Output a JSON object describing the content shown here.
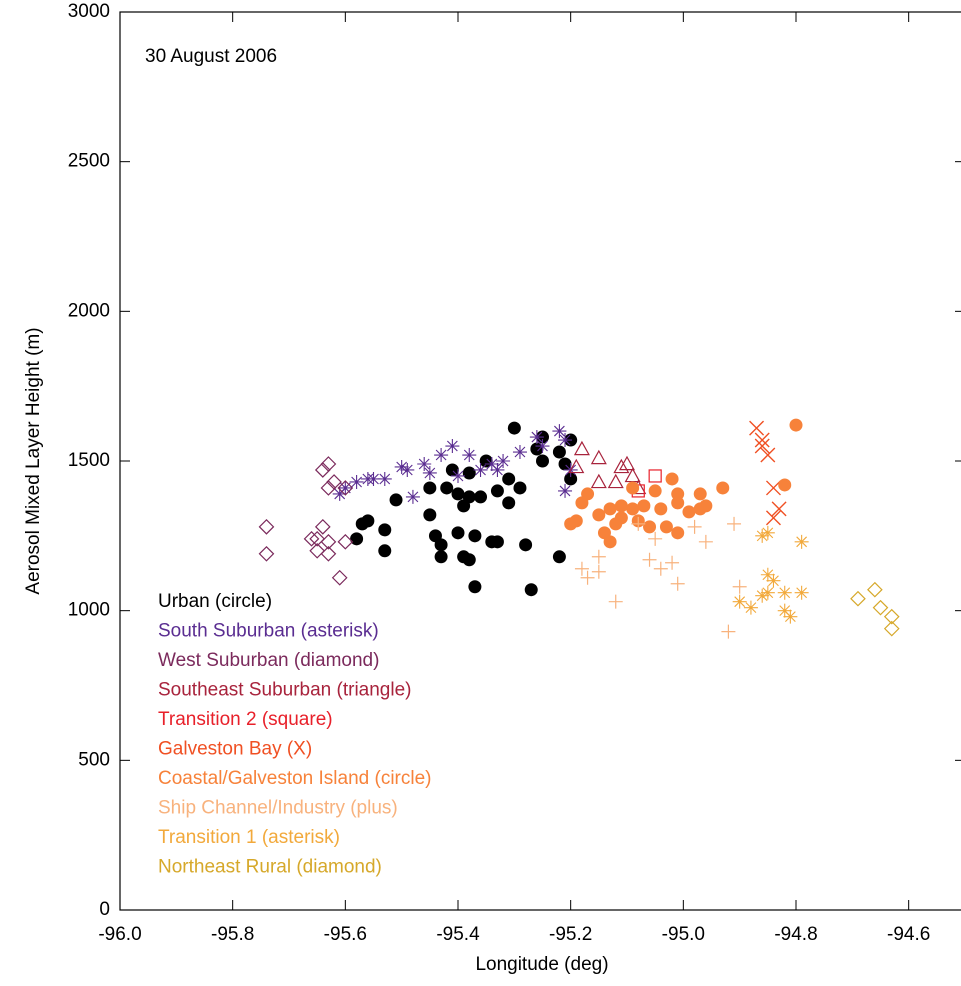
{
  "chart_data": {
    "type": "scatter",
    "annotation": "30 August 2006",
    "x_label": "Longitude (deg)",
    "y_label": "Aerosol Mixed Layer Height (m)",
    "xlim": [
      -96.0,
      -94.5
    ],
    "ylim": [
      0,
      3000
    ],
    "xticks": [
      {
        "value": -96.0,
        "label": "-96.0"
      },
      -95.8,
      -95.6,
      -95.4,
      -95.2,
      {
        "value": -95.0,
        "label": "-95.0"
      },
      -94.8,
      -94.6
    ],
    "yticks": [
      0,
      500,
      1000,
      1500,
      2000,
      2500,
      3000
    ],
    "series": [
      {
        "name": "Urban (circle)",
        "color": "#000000",
        "marker": "circle",
        "x": [
          -95.3,
          -95.2,
          -95.25,
          -95.26,
          -95.25,
          -95.22,
          -95.21,
          -95.35,
          -95.38,
          -95.41,
          -95.42,
          -95.4,
          -95.45,
          -95.51,
          -95.31,
          -95.29,
          -95.33,
          -95.36,
          -95.38,
          -95.39,
          -95.45,
          -95.31,
          -95.44,
          -95.53,
          -95.56,
          -95.57,
          -95.58,
          -95.53,
          -95.43,
          -95.4,
          -95.37,
          -95.34,
          -95.33,
          -95.43,
          -95.39,
          -95.38,
          -95.28,
          -95.22,
          -95.37,
          -95.27,
          -95.2
        ],
        "values": [
          1610,
          1570,
          1580,
          1540,
          1500,
          1530,
          1490,
          1500,
          1460,
          1470,
          1410,
          1390,
          1410,
          1370,
          1440,
          1410,
          1400,
          1380,
          1380,
          1350,
          1320,
          1360,
          1250,
          1270,
          1300,
          1290,
          1240,
          1200,
          1220,
          1260,
          1250,
          1230,
          1230,
          1180,
          1180,
          1170,
          1220,
          1180,
          1080,
          1070,
          1440
        ]
      },
      {
        "name": "South Suburban (asterisk)",
        "color": "#5a2d91",
        "marker": "asterisk",
        "x": [
          -95.26,
          -95.25,
          -95.22,
          -95.21,
          -95.29,
          -95.32,
          -95.34,
          -95.36,
          -95.38,
          -95.41,
          -95.43,
          -95.46,
          -95.49,
          -95.5,
          -95.53,
          -95.55,
          -95.56,
          -95.58,
          -95.6,
          -95.61,
          -95.48,
          -95.33,
          -95.21,
          -95.2,
          -95.4,
          -95.45
        ],
        "values": [
          1580,
          1550,
          1600,
          1570,
          1530,
          1500,
          1490,
          1470,
          1520,
          1550,
          1520,
          1490,
          1470,
          1480,
          1440,
          1440,
          1440,
          1430,
          1410,
          1390,
          1380,
          1470,
          1400,
          1470,
          1450,
          1460
        ]
      },
      {
        "name": "West Suburban (diamond)",
        "color": "#7b2a5c",
        "marker": "diamond",
        "x": [
          -95.74,
          -95.74,
          -95.63,
          -95.64,
          -95.62,
          -95.63,
          -95.6,
          -95.66,
          -95.64,
          -95.65,
          -95.63,
          -95.65,
          -95.63,
          -95.61,
          -95.6
        ],
        "values": [
          1280,
          1190,
          1490,
          1470,
          1430,
          1410,
          1410,
          1240,
          1280,
          1240,
          1230,
          1200,
          1190,
          1110,
          1230
        ]
      },
      {
        "name": "Southeast Suburban (triangle)",
        "color": "#a8233c",
        "marker": "triangle",
        "x": [
          -95.18,
          -95.19,
          -95.15,
          -95.11,
          -95.1,
          -95.15,
          -95.12,
          -95.09,
          -95.08
        ],
        "values": [
          1540,
          1480,
          1510,
          1480,
          1490,
          1430,
          1430,
          1450,
          1410
        ]
      },
      {
        "name": "Transition 2 (square)",
        "color": "#e8202a",
        "marker": "square",
        "x": [
          -95.05,
          -95.08
        ],
        "values": [
          1450,
          1400
        ]
      },
      {
        "name": "Galveston Bay (X)",
        "color": "#f05023",
        "marker": "x",
        "x": [
          -94.87,
          -94.86,
          -94.86,
          -94.85,
          -94.84,
          -94.83,
          -94.84
        ],
        "values": [
          1610,
          1570,
          1550,
          1520,
          1410,
          1340,
          1310
        ]
      },
      {
        "name": "Coastal/Galveston Island (circle)",
        "color": "#f7823a",
        "marker": "circle",
        "x": [
          -94.8,
          -94.82,
          -94.93,
          -94.97,
          -95.02,
          -95.01,
          -95.05,
          -95.09,
          -95.17,
          -95.18,
          -95.19,
          -95.2,
          -95.15,
          -95.13,
          -95.11,
          -95.12,
          -95.14,
          -95.13,
          -95.09,
          -95.07,
          -95.08,
          -95.06,
          -95.04,
          -95.03,
          -95.01,
          -94.99,
          -94.97,
          -94.96,
          -95.01,
          -95.11
        ],
        "values": [
          1620,
          1420,
          1410,
          1390,
          1440,
          1390,
          1400,
          1410,
          1390,
          1360,
          1300,
          1290,
          1320,
          1340,
          1310,
          1290,
          1260,
          1230,
          1340,
          1350,
          1300,
          1280,
          1340,
          1280,
          1260,
          1330,
          1340,
          1350,
          1360,
          1350
        ]
      },
      {
        "name": "Ship Channel/Industry (plus)",
        "color": "#f8b27d",
        "marker": "plus",
        "x": [
          -95.18,
          -95.17,
          -95.15,
          -95.12,
          -95.15,
          -95.08,
          -95.05,
          -95.04,
          -95.02,
          -95.01,
          -94.98,
          -94.96,
          -94.91,
          -94.9,
          -94.92,
          -95.06
        ],
        "values": [
          1140,
          1110,
          1130,
          1030,
          1180,
          1290,
          1240,
          1140,
          1160,
          1090,
          1280,
          1230,
          1290,
          1080,
          930,
          1170
        ]
      },
      {
        "name": "Transition 1 (asterisk)",
        "color": "#f2a93b",
        "marker": "asterisk",
        "x": [
          -94.86,
          -94.85,
          -94.85,
          -94.84,
          -94.79,
          -94.86,
          -94.88,
          -94.85,
          -94.82,
          -94.82,
          -94.81,
          -94.79,
          -94.9
        ],
        "values": [
          1250,
          1260,
          1120,
          1100,
          1230,
          1050,
          1010,
          1060,
          1060,
          1000,
          980,
          1060,
          1030
        ]
      },
      {
        "name": "Northeast Rural (diamond)",
        "color": "#d6a82a",
        "marker": "diamond",
        "x": [
          -94.69,
          -94.66,
          -94.65,
          -94.63,
          -94.63
        ],
        "values": [
          1040,
          1070,
          1010,
          980,
          940
        ]
      }
    ]
  }
}
